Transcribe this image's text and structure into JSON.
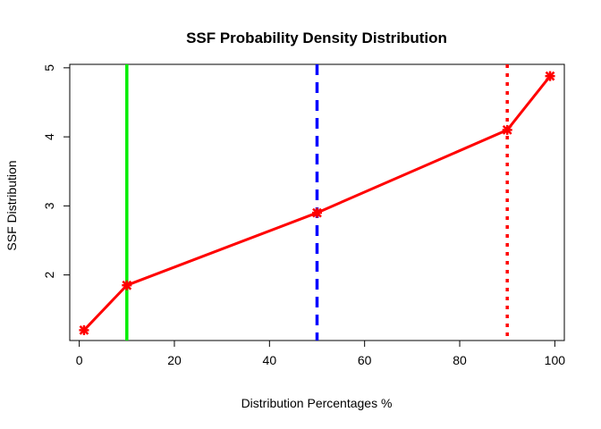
{
  "chart_data": {
    "type": "line",
    "title": "SSF Probability Density Distribution",
    "xlabel": "Distribution Percentages %",
    "ylabel": "SSF Distribution",
    "xlim": [
      -2,
      102
    ],
    "ylim": [
      1.05,
      5.05
    ],
    "xticks": [
      0,
      20,
      40,
      60,
      80,
      100
    ],
    "yticks": [
      2,
      3,
      4,
      5
    ],
    "series": [
      {
        "color": "#ff0000",
        "x": [
          1,
          10,
          50,
          90,
          99
        ],
        "y": [
          1.2,
          1.85,
          2.9,
          4.1,
          4.88
        ]
      }
    ],
    "vlines": [
      {
        "x": 10,
        "color": "#00ee00",
        "style": "solid"
      },
      {
        "x": 50,
        "color": "#0000ff",
        "style": "dashed"
      },
      {
        "x": 90,
        "color": "#ff0000",
        "style": "dotted"
      }
    ],
    "grid": false
  }
}
